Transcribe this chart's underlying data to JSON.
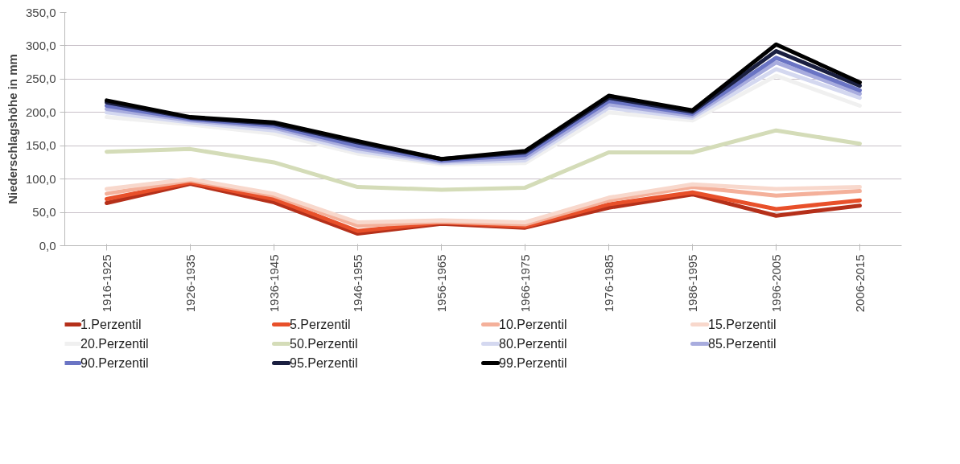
{
  "chart_data": {
    "type": "line",
    "ylabel": "Niederschlagshöhe in mm",
    "categories": [
      "1916-1925",
      "1926-1935",
      "1936-1945",
      "1946-1955",
      "1956-1965",
      "1966-1975",
      "1976-1985",
      "1986-1995",
      "1996-2005",
      "2006-2015"
    ],
    "ylim": [
      0,
      350
    ],
    "yticks": [
      {
        "value": 0,
        "label": "0,0"
      },
      {
        "value": 50,
        "label": "50,0"
      },
      {
        "value": 100,
        "label": "100,0"
      },
      {
        "value": 150,
        "label": "150,0"
      },
      {
        "value": 200,
        "label": "200,0"
      },
      {
        "value": 250,
        "label": "250,0"
      },
      {
        "value": 300,
        "label": "300,0"
      },
      {
        "value": 350,
        "label": "350,0"
      }
    ],
    "grid": "y",
    "legend": "bottom",
    "marker": "none",
    "line_style": "solid",
    "series": [
      {
        "name": "1.Perzentil",
        "color": "#b5301a",
        "values": [
          64,
          93,
          65,
          18,
          33,
          27,
          57,
          77,
          45,
          60
        ]
      },
      {
        "name": "5.Perzentil",
        "color": "#e8502a",
        "values": [
          70,
          95,
          70,
          22,
          35,
          29,
          62,
          80,
          55,
          68
        ]
      },
      {
        "name": "10.Perzentil",
        "color": "#f4b09a",
        "values": [
          78,
          98,
          75,
          30,
          36,
          32,
          68,
          88,
          75,
          82
        ]
      },
      {
        "name": "15.Perzentil",
        "color": "#f8d8cc",
        "values": [
          85,
          100,
          78,
          35,
          38,
          35,
          72,
          92,
          85,
          88
        ]
      },
      {
        "name": "20.Perzentil",
        "color": "#f0f0f0",
        "values": [
          193,
          182,
          168,
          138,
          122,
          124,
          200,
          188,
          255,
          210
        ]
      },
      {
        "name": "50.Perzentil",
        "color": "#d4dcb8",
        "values": [
          141,
          145,
          125,
          88,
          84,
          87,
          140,
          140,
          173,
          153
        ]
      },
      {
        "name": "80.Perzentil",
        "color": "#d4d8f0",
        "values": [
          200,
          185,
          173,
          142,
          124,
          128,
          207,
          192,
          265,
          222
        ]
      },
      {
        "name": "85.Perzentil",
        "color": "#a8acde",
        "values": [
          205,
          188,
          177,
          146,
          126,
          132,
          212,
          195,
          275,
          228
        ]
      },
      {
        "name": "90.Perzentil",
        "color": "#6a74c4",
        "values": [
          210,
          190,
          180,
          150,
          128,
          136,
          217,
          198,
          282,
          233
        ]
      },
      {
        "name": "95.Perzentil",
        "color": "#1a1f40",
        "values": [
          215,
          192,
          183,
          155,
          130,
          140,
          222,
          201,
          292,
          240
        ]
      },
      {
        "name": "99.Perzentil",
        "color": "#000000",
        "values": [
          218,
          193,
          185,
          157,
          130,
          142,
          225,
          203,
          302,
          245
        ]
      }
    ]
  }
}
